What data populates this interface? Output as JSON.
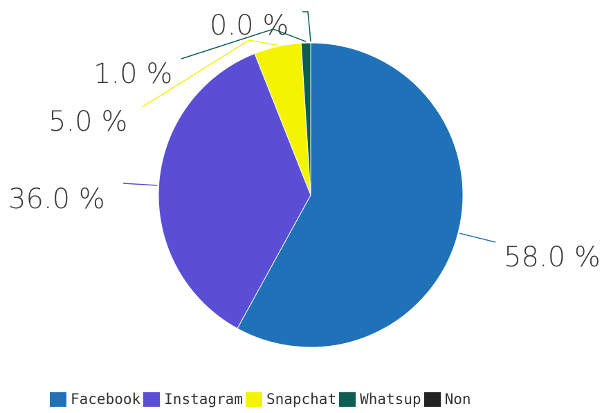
{
  "chart_data": {
    "type": "pie",
    "slices": [
      {
        "name": "Facebook",
        "value": 58.0,
        "label": "58.0 %",
        "color": "#1f72b8"
      },
      {
        "name": "Instagram",
        "value": 36.0,
        "label": "36.0 %",
        "color": "#5a4fd4"
      },
      {
        "name": "Snapchat",
        "value": 5.0,
        "label": "5.0 %",
        "color": "#f4f400"
      },
      {
        "name": "Whatsup",
        "value": 1.0,
        "label": "1.0 %",
        "color": "#0d5e52"
      },
      {
        "name": "Non",
        "value": 0.0,
        "label": "0.0 %",
        "color": "#222222"
      }
    ],
    "legend_position": "bottom"
  }
}
